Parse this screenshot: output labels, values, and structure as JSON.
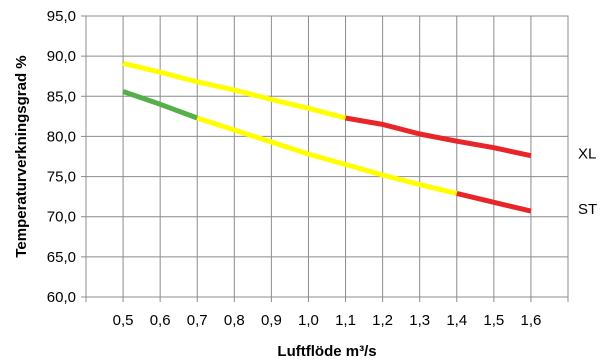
{
  "chart_data": {
    "type": "line",
    "title": "",
    "xlabel": "Luftflöde m³/s",
    "ylabel": "Temperaturverkningsgrad %",
    "x": [
      0.5,
      0.6,
      0.7,
      0.8,
      0.9,
      1.0,
      1.1,
      1.2,
      1.3,
      1.4,
      1.5,
      1.6
    ],
    "x_tick_labels": [
      "0,5",
      "0,6",
      "0,7",
      "0,8",
      "0,9",
      "1,0",
      "1,1",
      "1,2",
      "1,3",
      "1,4",
      "1,5",
      "1,6"
    ],
    "xlim": [
      0.5,
      1.6
    ],
    "y_ticks": [
      60,
      65,
      70,
      75,
      80,
      85,
      90,
      95
    ],
    "y_tick_labels": [
      "60,0",
      "65,0",
      "70,0",
      "75,0",
      "80,0",
      "85,0",
      "90,0",
      "95,0"
    ],
    "ylim": [
      60,
      95
    ],
    "grid": true,
    "series": [
      {
        "name": "XL",
        "x": [
          0.5,
          0.6,
          0.7,
          0.8,
          0.9,
          1.0,
          1.1,
          1.2,
          1.3,
          1.4,
          1.5,
          1.6
        ],
        "values": [
          89.1,
          88.0,
          86.8,
          85.8,
          84.6,
          83.5,
          82.3,
          81.5,
          80.3,
          79.4,
          78.6,
          77.6
        ],
        "segments": [
          {
            "from": 0.5,
            "to": 1.1,
            "color": "#ffff00"
          },
          {
            "from": 1.1,
            "to": 1.6,
            "color": "#e8262a"
          }
        ]
      },
      {
        "name": "ST",
        "x": [
          0.5,
          0.6,
          0.7,
          0.8,
          0.9,
          1.0,
          1.1,
          1.2,
          1.3,
          1.4,
          1.5,
          1.6
        ],
        "values": [
          85.6,
          84.0,
          82.3,
          80.8,
          79.3,
          77.8,
          76.5,
          75.2,
          74.0,
          72.9,
          71.8,
          70.7
        ],
        "segments": [
          {
            "from": 0.5,
            "to": 0.7,
            "color": "#55b04a"
          },
          {
            "from": 0.7,
            "to": 1.4,
            "color": "#ffff00"
          },
          {
            "from": 1.4,
            "to": 1.6,
            "color": "#e8262a"
          }
        ]
      }
    ]
  }
}
